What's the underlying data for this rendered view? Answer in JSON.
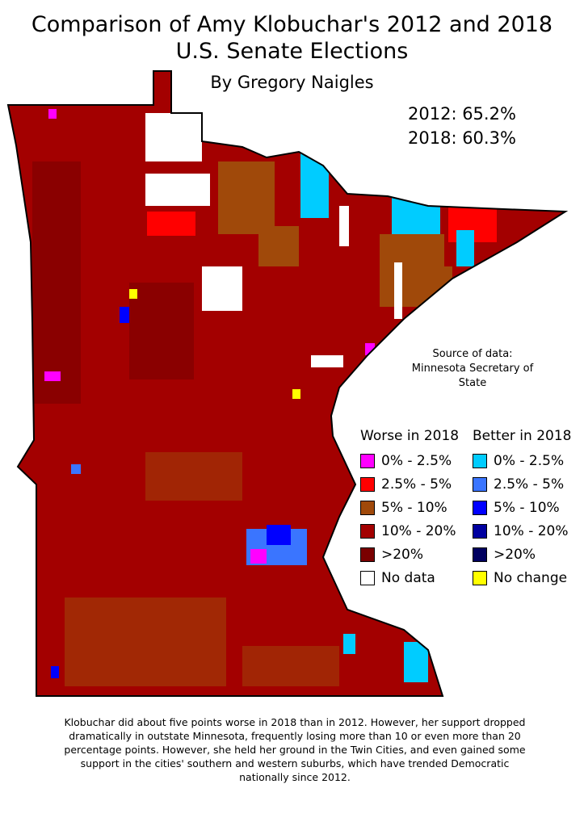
{
  "title": "Comparison of Amy Klobuchar's 2012 and 2018 U.S. Senate Elections",
  "subtitle": "By Gregory Naigles",
  "results": [
    "2012: 65.2%",
    "2018: 60.3%"
  ],
  "source": "Source of data: Minnesota Secretary of State",
  "legend": [
    {
      "title": "Worse in 2018",
      "items": [
        {
          "label": "0% - 2.5%",
          "color": "#ff00ff"
        },
        {
          "label": "2.5% - 5%",
          "color": "#ff0000"
        },
        {
          "label": "5% - 10%",
          "color": "#a0490a"
        },
        {
          "label": "10% - 20%",
          "color": "#a30000"
        },
        {
          "label": ">20%",
          "color": "#7a0000"
        },
        {
          "label": "No data",
          "color": "#ffffff"
        }
      ]
    },
    {
      "title": "Better in 2018",
      "items": [
        {
          "label": "0% - 2.5%",
          "color": "#00ccff"
        },
        {
          "label": "2.5% - 5%",
          "color": "#3a75ff"
        },
        {
          "label": "5% - 10%",
          "color": "#0000ff"
        },
        {
          "label": "10% - 20%",
          "color": "#0000a0"
        },
        {
          "label": ">20%",
          "color": "#000060"
        },
        {
          "label": "No change",
          "color": "#ffff00"
        }
      ]
    }
  ],
  "caption": "Klobuchar did about five points worse in 2018 than in 2012. However, her support dropped dramatically in outstate Minnesota, frequently losing more than 10 or even more than 20 percentage points. However, she held her ground in the Twin Cities, and even gained some support in the cities' southern and western suburbs, which have trended Democratic nationally since 2012."
}
